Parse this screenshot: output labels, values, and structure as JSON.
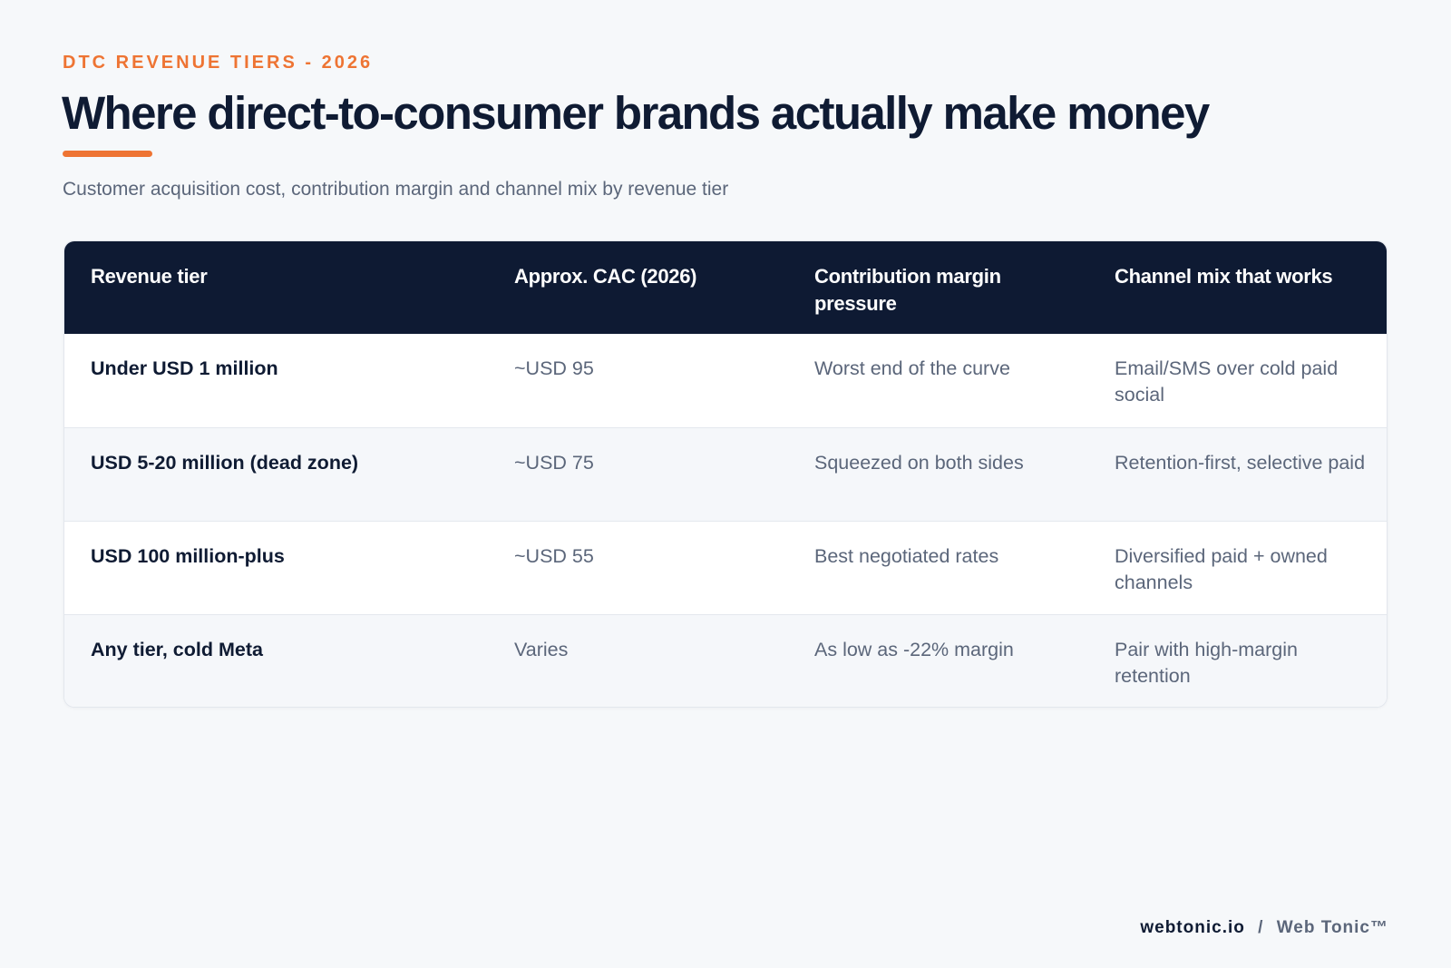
{
  "header": {
    "eyebrow": "DTC REVENUE TIERS - 2026",
    "title": "Where direct-to-consumer brands actually make money",
    "subtitle": "Customer acquisition cost, contribution margin and channel mix by revenue tier",
    "accent_color": "#ee7433"
  },
  "table": {
    "header_bg": "#0e1a33",
    "columns": [
      "Revenue tier",
      "Approx. CAC (2026)",
      "Contribution margin pressure",
      "Channel mix that works"
    ],
    "rows": [
      {
        "tier": "Under USD 1 million",
        "cac": "~USD 95",
        "margin": "Worst end of the curve",
        "channel": "Email/SMS over cold paid social"
      },
      {
        "tier": "USD 5-20 million (dead zone)",
        "cac": "~USD 75",
        "margin": "Squeezed on both sides",
        "channel": "Retention-first, selective paid"
      },
      {
        "tier": "USD 100 million-plus",
        "cac": "~USD 55",
        "margin": "Best negotiated rates",
        "channel": "Diversified paid + owned channels"
      },
      {
        "tier": "Any tier, cold Meta",
        "cac": "Varies",
        "margin": "As low as -22% margin",
        "channel": "Pair with high-margin retention"
      }
    ]
  },
  "footer": {
    "site": "webtonic.io",
    "separator": "/",
    "brand": "Web Tonic™"
  }
}
